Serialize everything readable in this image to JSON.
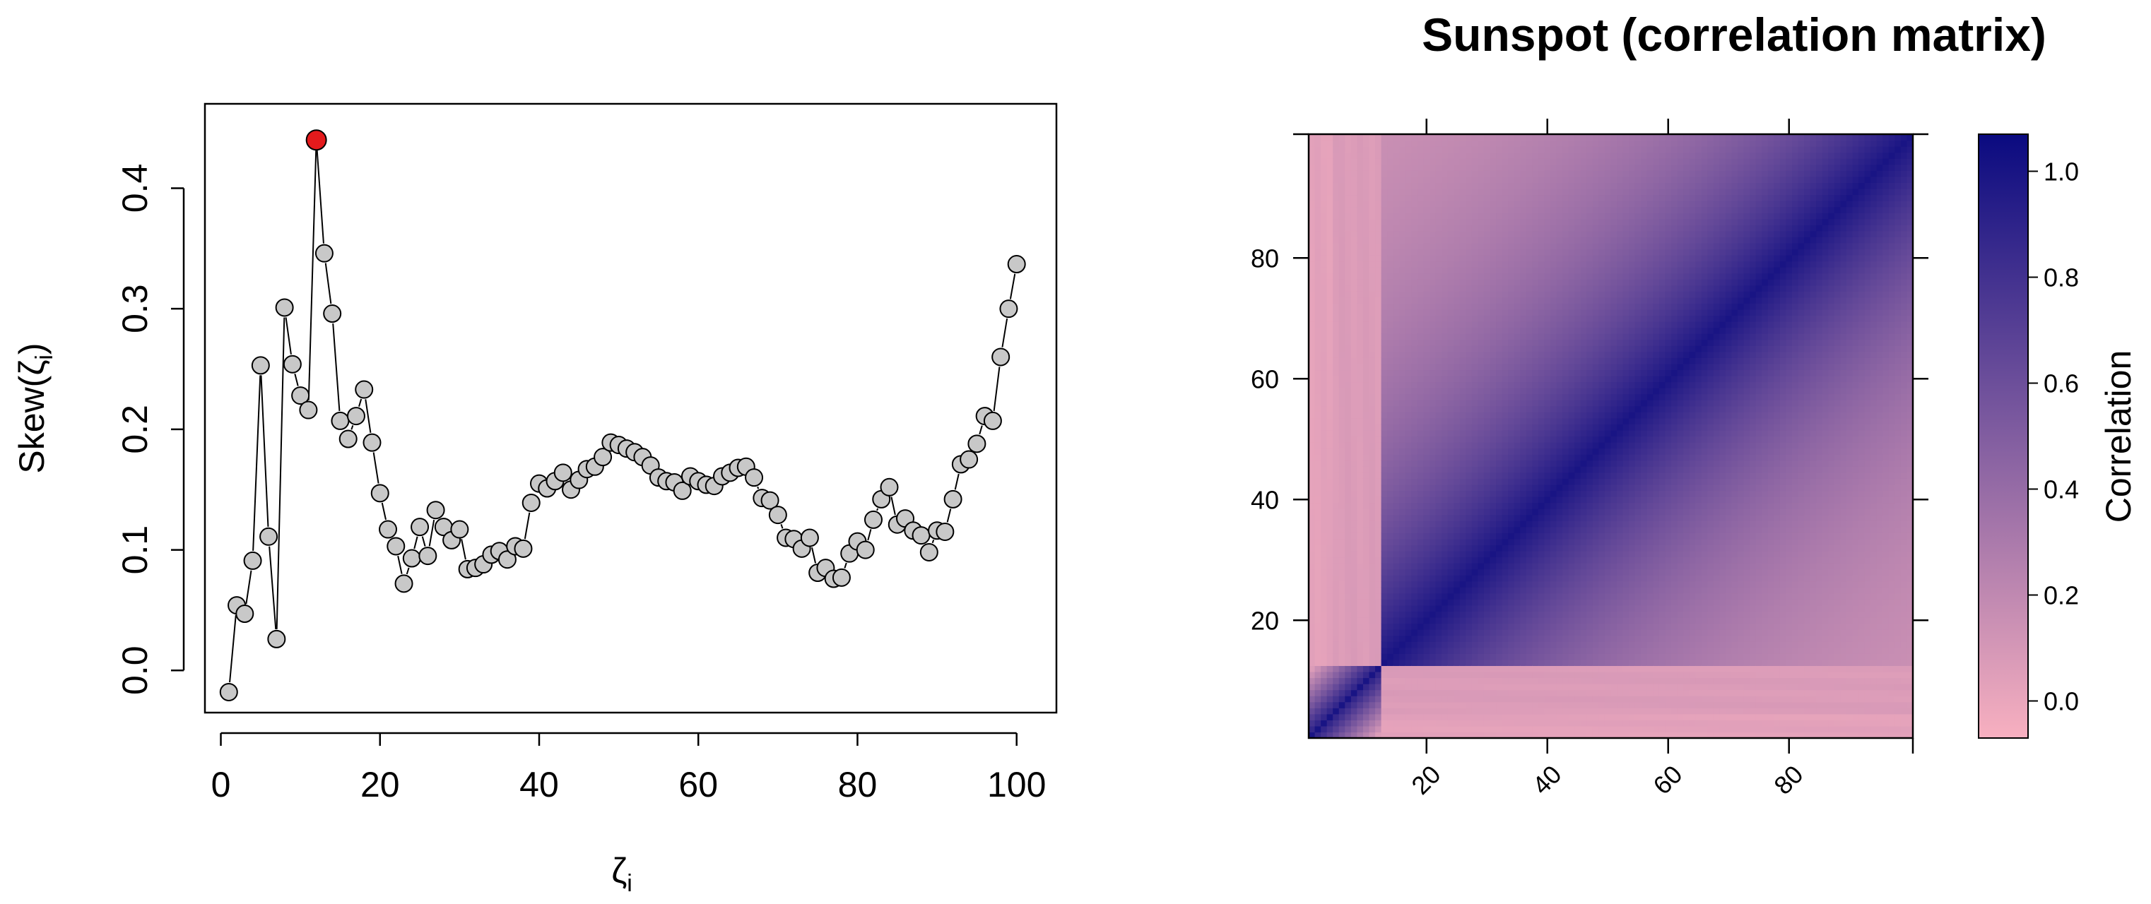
{
  "chart_data": [
    {
      "type": "scatter",
      "title": "",
      "xlabel": "ζ",
      "xlabel_sub": "i",
      "ylabel_prefix": "Skew(",
      "ylabel_var": "ζ",
      "ylabel_sub": "i",
      "ylabel_suffix": ")",
      "xlim": [
        -2,
        105
      ],
      "ylim": [
        -0.035,
        0.47
      ],
      "xticks": [
        0,
        20,
        40,
        60,
        80,
        100
      ],
      "yticks": [
        0.0,
        0.1,
        0.2,
        0.3,
        0.4
      ],
      "xtick_labels": [
        "0",
        "20",
        "40",
        "60",
        "80",
        "100"
      ],
      "ytick_labels": [
        "0.0",
        "0.1",
        "0.2",
        "0.3",
        "0.4"
      ],
      "grid": false,
      "connected": true,
      "point_color": "#c8c8c8",
      "highlight_color": "#e41a1c",
      "highlight_index": 11,
      "x": [
        1,
        2,
        3,
        4,
        5,
        6,
        7,
        8,
        9,
        10,
        11,
        12,
        13,
        14,
        15,
        16,
        17,
        18,
        19,
        20,
        21,
        22,
        23,
        24,
        25,
        26,
        27,
        28,
        29,
        30,
        31,
        32,
        33,
        34,
        35,
        36,
        37,
        38,
        39,
        40,
        41,
        42,
        43,
        44,
        45,
        46,
        47,
        48,
        49,
        50,
        51,
        52,
        53,
        54,
        55,
        56,
        57,
        58,
        59,
        60,
        61,
        62,
        63,
        64,
        65,
        66,
        67,
        68,
        69,
        70,
        71,
        72,
        73,
        74,
        75,
        76,
        77,
        78,
        79,
        80,
        81,
        82,
        83,
        84,
        85,
        86,
        87,
        88,
        89,
        90,
        91,
        92,
        93,
        94,
        95,
        96,
        97,
        98,
        99,
        100
      ],
      "y": [
        -0.018,
        0.054,
        0.047,
        0.091,
        0.253,
        0.111,
        0.026,
        0.301,
        0.254,
        0.228,
        0.216,
        0.44,
        0.346,
        0.296,
        0.207,
        0.192,
        0.211,
        0.233,
        0.189,
        0.147,
        0.117,
        0.103,
        0.072,
        0.093,
        0.119,
        0.095,
        0.133,
        0.119,
        0.108,
        0.117,
        0.084,
        0.085,
        0.088,
        0.096,
        0.099,
        0.092,
        0.103,
        0.101,
        0.139,
        0.155,
        0.151,
        0.157,
        0.164,
        0.15,
        0.158,
        0.167,
        0.169,
        0.177,
        0.189,
        0.187,
        0.184,
        0.181,
        0.177,
        0.17,
        0.16,
        0.157,
        0.156,
        0.149,
        0.161,
        0.157,
        0.154,
        0.153,
        0.161,
        0.164,
        0.168,
        0.169,
        0.16,
        0.143,
        0.141,
        0.129,
        0.11,
        0.109,
        0.101,
        0.11,
        0.081,
        0.085,
        0.076,
        0.077,
        0.097,
        0.107,
        0.1,
        0.125,
        0.142,
        0.152,
        0.121,
        0.126,
        0.116,
        0.112,
        0.098,
        0.116,
        0.115,
        0.142,
        0.171,
        0.175,
        0.188,
        0.211,
        0.207,
        0.26,
        0.3,
        0.337
      ]
    },
    {
      "type": "heatmap",
      "title": "Sunspot (correlation matrix)",
      "n": 100,
      "xlim": [
        0.5,
        100.5
      ],
      "ylim": [
        0.5,
        100.5
      ],
      "xticks": [
        20,
        40,
        60,
        80
      ],
      "yticks": [
        20,
        40,
        60,
        80
      ],
      "xtick_labels": [
        "20",
        "40",
        "60",
        "80"
      ],
      "ytick_labels": [
        "20",
        "40",
        "60",
        "80"
      ],
      "colorbar_label": "Correlation",
      "colorbar_range": [
        -0.07,
        1.07
      ],
      "colorbar_ticks": [
        0.0,
        0.2,
        0.4,
        0.6,
        0.8,
        1.0
      ],
      "colorbar_tick_labels": [
        "0.0",
        "0.2",
        "0.4",
        "0.6",
        "0.8",
        "1.0"
      ],
      "color_low": "#f8b0c0",
      "color_high": "#0a0a80",
      "anomaly_band": [
        1,
        12
      ]
    }
  ]
}
